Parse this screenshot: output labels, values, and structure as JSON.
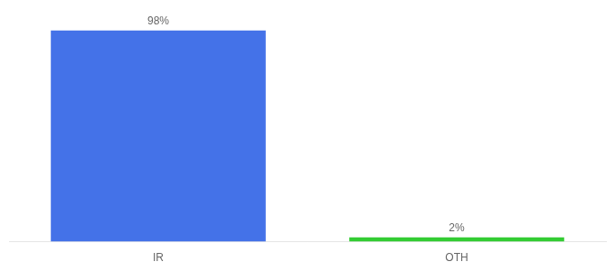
{
  "chart_data": {
    "type": "bar",
    "categories": [
      "IR",
      "OTH"
    ],
    "values": [
      98,
      2
    ],
    "value_labels": [
      "98%",
      "2%"
    ],
    "colors": [
      "#4472e8",
      "#33cc33"
    ],
    "ylim": [
      0,
      108
    ],
    "grid": false,
    "data_labels": true,
    "tick_labels": "x"
  }
}
